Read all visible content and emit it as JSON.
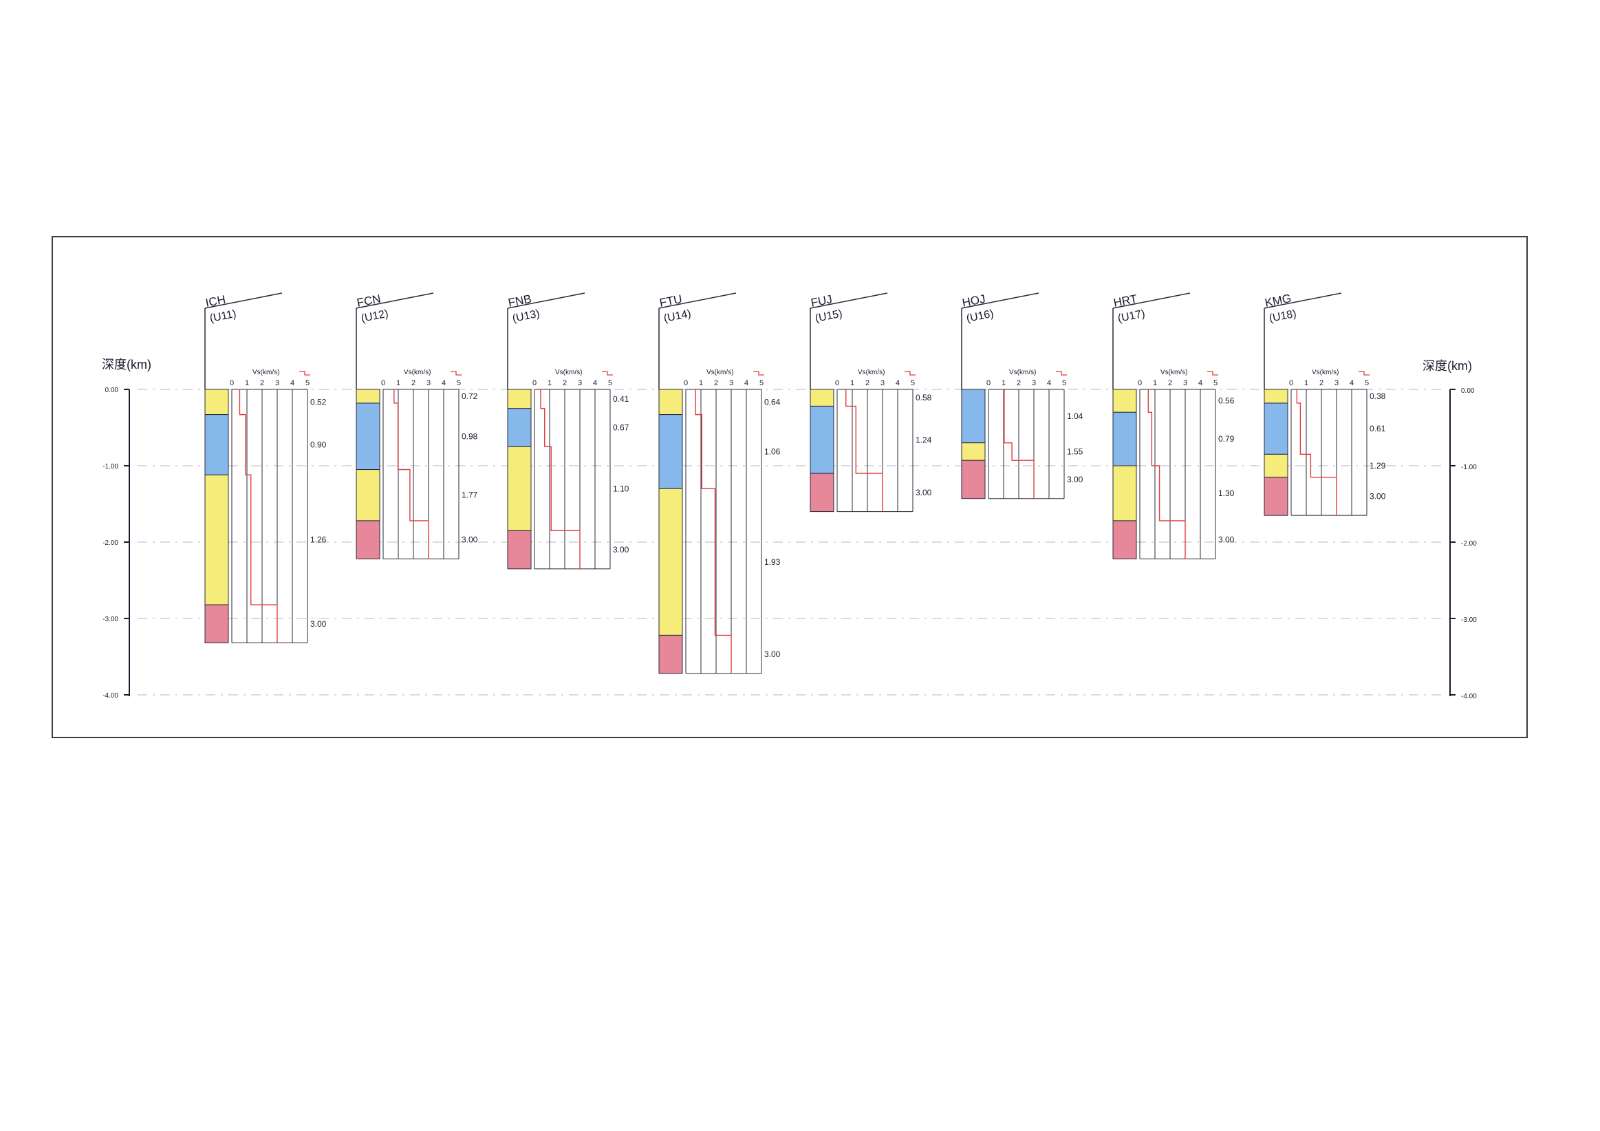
{
  "page": {
    "background": "#ffffff",
    "frame_color": "#3a3a4a"
  },
  "depth_axis": {
    "label": "深度(km)",
    "ticks": [
      "0.00",
      "-1.00",
      "-2.00",
      "-3.00",
      "-4.00"
    ],
    "tick_values": [
      0,
      -1,
      -2,
      -3,
      -4
    ],
    "range": [
      0,
      -4
    ]
  },
  "vs_axis": {
    "label": "Vs(km/s)",
    "ticks": [
      "0",
      "1",
      "2",
      "3",
      "4",
      "5"
    ],
    "range": [
      0,
      5
    ]
  },
  "colors": {
    "yellow": "#f5ec7a",
    "blue": "#86b8ec",
    "red": "#e6879a",
    "vs_line": "#e33b3b",
    "grid": "#2a2a3a",
    "dash": "#7a7a9a"
  },
  "chart_data": {
    "type": "borehole-profile",
    "y_label": "深度(km)",
    "x_label": "Vs(km/s)",
    "ylim": [
      -4,
      0
    ],
    "xlim": [
      0,
      5
    ],
    "stations": [
      {
        "name": "ICH",
        "code": "(U11)",
        "layers": [
          {
            "top": 0,
            "bottom": 0.33,
            "color": "yellow"
          },
          {
            "top": 0.33,
            "bottom": 1.12,
            "color": "blue"
          },
          {
            "top": 1.12,
            "bottom": 2.82,
            "color": "yellow"
          },
          {
            "top": 2.82,
            "bottom": 3.32,
            "color": "red"
          }
        ],
        "vs_profile": [
          {
            "top": 0,
            "bottom": 0.33,
            "vs": 0.52
          },
          {
            "top": 0.33,
            "bottom": 1.12,
            "vs": 0.9
          },
          {
            "top": 1.12,
            "bottom": 2.82,
            "vs": 1.26
          },
          {
            "top": 2.82,
            "bottom": 3.32,
            "vs": 3.0
          }
        ],
        "vs_labels": [
          "0.52",
          "0.90",
          "1.26",
          "3.00"
        ]
      },
      {
        "name": "FCN",
        "code": "(U12)",
        "layers": [
          {
            "top": 0,
            "bottom": 0.18,
            "color": "yellow"
          },
          {
            "top": 0.18,
            "bottom": 1.05,
            "color": "blue"
          },
          {
            "top": 1.05,
            "bottom": 1.72,
            "color": "yellow"
          },
          {
            "top": 1.72,
            "bottom": 2.22,
            "color": "red"
          }
        ],
        "vs_profile": [
          {
            "top": 0,
            "bottom": 0.18,
            "vs": 0.72
          },
          {
            "top": 0.18,
            "bottom": 1.05,
            "vs": 0.98
          },
          {
            "top": 1.05,
            "bottom": 1.72,
            "vs": 1.77
          },
          {
            "top": 1.72,
            "bottom": 2.22,
            "vs": 3.0
          }
        ],
        "vs_labels": [
          "0.72",
          "0.98",
          "1.77",
          "3.00"
        ]
      },
      {
        "name": "FNB",
        "code": "(U13)",
        "layers": [
          {
            "top": 0,
            "bottom": 0.25,
            "color": "yellow"
          },
          {
            "top": 0.25,
            "bottom": 0.75,
            "color": "blue"
          },
          {
            "top": 0.75,
            "bottom": 1.85,
            "color": "yellow"
          },
          {
            "top": 1.85,
            "bottom": 2.35,
            "color": "red"
          }
        ],
        "vs_profile": [
          {
            "top": 0,
            "bottom": 0.25,
            "vs": 0.41
          },
          {
            "top": 0.25,
            "bottom": 0.75,
            "vs": 0.67
          },
          {
            "top": 0.75,
            "bottom": 1.85,
            "vs": 1.1
          },
          {
            "top": 1.85,
            "bottom": 2.35,
            "vs": 3.0
          }
        ],
        "vs_labels": [
          "0.41",
          "0.67",
          "1.10",
          "3.00"
        ]
      },
      {
        "name": "FTU",
        "code": "(U14)",
        "layers": [
          {
            "top": 0,
            "bottom": 0.33,
            "color": "yellow"
          },
          {
            "top": 0.33,
            "bottom": 1.3,
            "color": "blue"
          },
          {
            "top": 1.3,
            "bottom": 3.22,
            "color": "yellow"
          },
          {
            "top": 3.22,
            "bottom": 3.72,
            "color": "red"
          }
        ],
        "vs_profile": [
          {
            "top": 0,
            "bottom": 0.33,
            "vs": 0.64
          },
          {
            "top": 0.33,
            "bottom": 1.3,
            "vs": 1.06
          },
          {
            "top": 1.3,
            "bottom": 3.22,
            "vs": 1.93
          },
          {
            "top": 3.22,
            "bottom": 3.72,
            "vs": 3.0
          }
        ],
        "vs_labels": [
          "0.64",
          "1.06",
          "1.93",
          "3.00"
        ]
      },
      {
        "name": "FUJ",
        "code": "(U15)",
        "layers": [
          {
            "top": 0,
            "bottom": 0.22,
            "color": "yellow"
          },
          {
            "top": 0.22,
            "bottom": 1.1,
            "color": "blue"
          },
          {
            "top": 1.1,
            "bottom": 1.6,
            "color": "red"
          }
        ],
        "vs_profile": [
          {
            "top": 0,
            "bottom": 0.22,
            "vs": 0.58
          },
          {
            "top": 0.22,
            "bottom": 1.1,
            "vs": 1.24
          },
          {
            "top": 1.1,
            "bottom": 1.6,
            "vs": 3.0
          }
        ],
        "vs_labels": [
          "0.58",
          "1.24",
          "3.00"
        ]
      },
      {
        "name": "HOJ",
        "code": "(U16)",
        "layers": [
          {
            "top": 0,
            "bottom": 0.7,
            "color": "blue"
          },
          {
            "top": 0.7,
            "bottom": 0.93,
            "color": "yellow"
          },
          {
            "top": 0.93,
            "bottom": 1.43,
            "color": "red"
          }
        ],
        "vs_profile": [
          {
            "top": 0,
            "bottom": 0.7,
            "vs": 1.04
          },
          {
            "top": 0.7,
            "bottom": 0.93,
            "vs": 1.55
          },
          {
            "top": 0.93,
            "bottom": 1.43,
            "vs": 3.0
          }
        ],
        "vs_labels": [
          "1.04",
          "1.55",
          "3.00"
        ]
      },
      {
        "name": "HRT",
        "code": "(U17)",
        "layers": [
          {
            "top": 0,
            "bottom": 0.3,
            "color": "yellow"
          },
          {
            "top": 0.3,
            "bottom": 1.0,
            "color": "blue"
          },
          {
            "top": 1.0,
            "bottom": 1.72,
            "color": "yellow"
          },
          {
            "top": 1.72,
            "bottom": 2.22,
            "color": "red"
          }
        ],
        "vs_profile": [
          {
            "top": 0,
            "bottom": 0.3,
            "vs": 0.56
          },
          {
            "top": 0.3,
            "bottom": 1.0,
            "vs": 0.79
          },
          {
            "top": 1.0,
            "bottom": 1.72,
            "vs": 1.3
          },
          {
            "top": 1.72,
            "bottom": 2.22,
            "vs": 3.0
          }
        ],
        "vs_labels": [
          "0.56",
          "0.79",
          "1.30",
          "3.00"
        ]
      },
      {
        "name": "KMG",
        "code": "(U18)",
        "layers": [
          {
            "top": 0,
            "bottom": 0.18,
            "color": "yellow"
          },
          {
            "top": 0.18,
            "bottom": 0.85,
            "color": "blue"
          },
          {
            "top": 0.85,
            "bottom": 1.15,
            "color": "yellow"
          },
          {
            "top": 1.15,
            "bottom": 1.65,
            "color": "red"
          }
        ],
        "vs_profile": [
          {
            "top": 0,
            "bottom": 0.18,
            "vs": 0.38
          },
          {
            "top": 0.18,
            "bottom": 0.85,
            "vs": 0.61
          },
          {
            "top": 0.85,
            "bottom": 1.15,
            "vs": 1.29
          },
          {
            "top": 1.15,
            "bottom": 1.65,
            "vs": 3.0
          }
        ],
        "vs_labels": [
          "0.38",
          "0.61",
          "1.29",
          "3.00"
        ]
      }
    ]
  }
}
